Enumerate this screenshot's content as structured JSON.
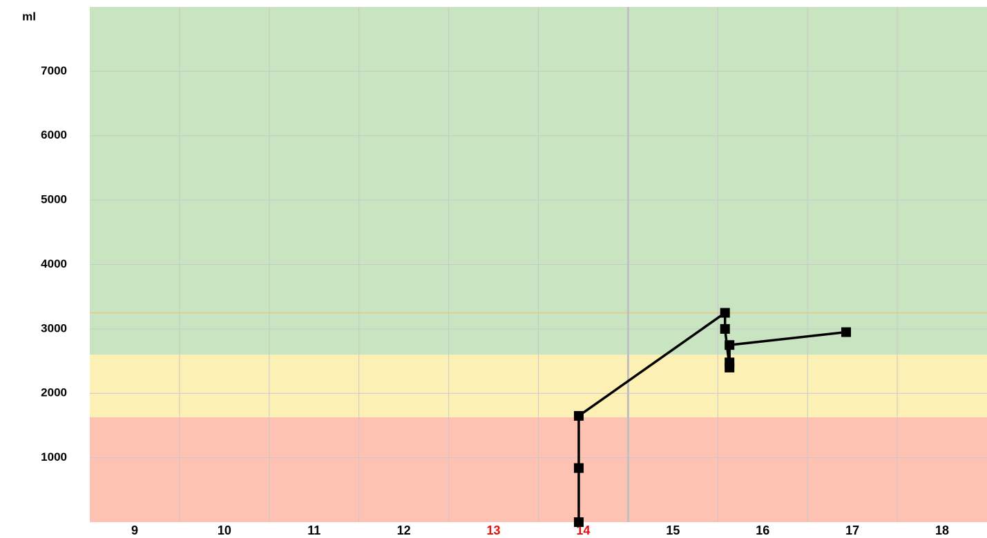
{
  "chart_data": {
    "type": "line",
    "y_label": "ml",
    "xlim": [
      8.5,
      18.5
    ],
    "xticks": [
      9,
      10,
      11,
      12,
      13,
      14,
      15,
      16,
      17,
      18
    ],
    "highlight_ticks": [
      13,
      14
    ],
    "highlight_color": "#e8100c",
    "ylim": [
      0,
      8000
    ],
    "yticks": [
      1000,
      2000,
      3000,
      4000,
      5000,
      6000,
      7000
    ],
    "grid": true,
    "grid_color": "#c8c8c8",
    "bands": [
      {
        "from": 0,
        "to": 1630,
        "color": "#fdc2b1"
      },
      {
        "from": 1630,
        "to": 2600,
        "color": "#fcf0b4"
      },
      {
        "from": 2600,
        "to": 8000,
        "color": "#c9e4c0"
      }
    ],
    "reference_line": {
      "value": 3250,
      "color": "#e6c88c"
    },
    "marker_line": {
      "value": 14.5,
      "color": "#c0c0c0"
    },
    "series": [
      {
        "color": "#000000",
        "x": [
          13.95,
          13.95,
          13.95,
          15.58,
          15.58,
          15.63,
          15.63,
          15.63,
          16.93
        ],
        "values": [
          0,
          840,
          1650,
          3250,
          3000,
          2400,
          2480,
          2750,
          2950
        ]
      }
    ]
  }
}
